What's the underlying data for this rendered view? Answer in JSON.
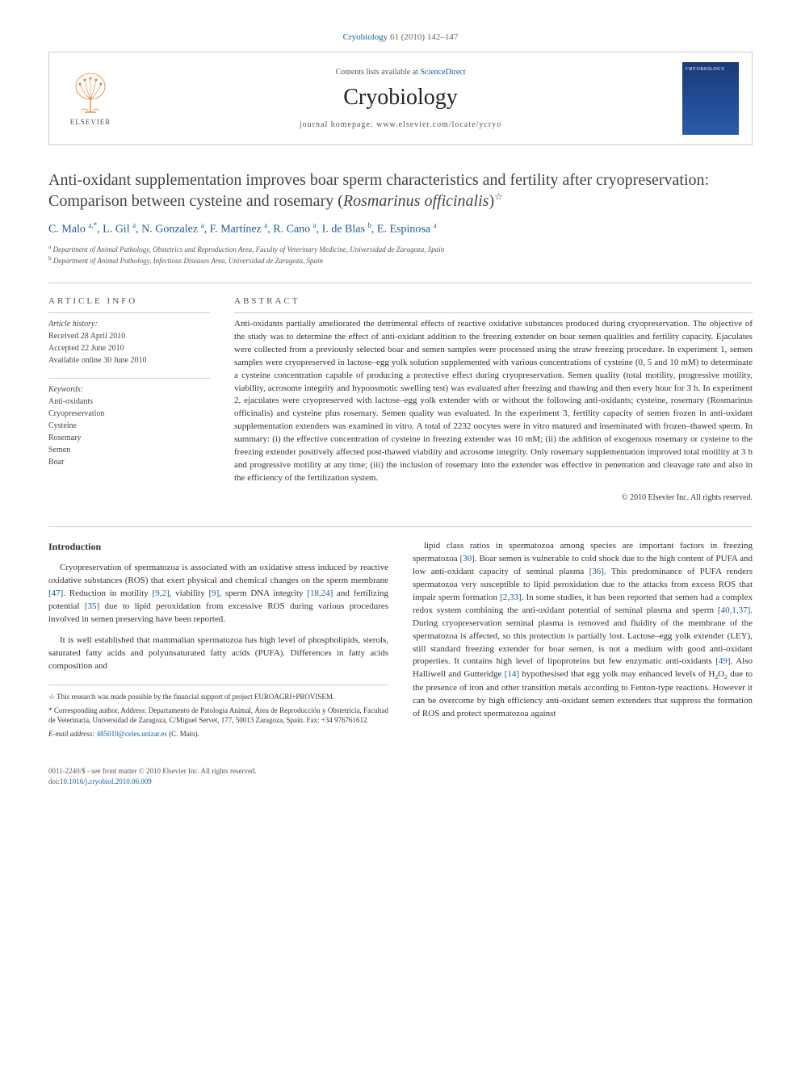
{
  "citation": {
    "journal_link": "Cryobiology",
    "volume_pages": "61 (2010) 142–147"
  },
  "header": {
    "contents_prefix": "Contents lists available at ",
    "contents_link": "ScienceDirect",
    "journal_name": "Cryobiology",
    "homepage_prefix": "journal homepage: ",
    "homepage_url": "www.elsevier.com/locate/ycryo",
    "elsevier_label": "ELSEVIER",
    "cover_label": "CRYOBIOLOGY"
  },
  "title": {
    "line1": "Anti-oxidant supplementation improves boar sperm characteristics and fertility after cryopreservation: Comparison between cysteine and rosemary (",
    "species": "Rosmarinus officinalis",
    "line2": ")",
    "star": "☆"
  },
  "authors_html": "C. Malo <sup>a,*</sup>, L. Gil <sup>a</sup>, N. Gonzalez <sup>a</sup>, F. Martínez <sup>a</sup>, R. Cano <sup>a</sup>, I. de Blas <sup>b</sup>, E. Espinosa <sup>a</sup>",
  "affiliations": {
    "a": "Department of Animal Pathology, Obstetrics and Reproduction Area, Faculty of Veterinary Medicine, Universidad de Zaragoza, Spain",
    "b": "Department of Animal Pathology, Infectious Diseases Area, Universidad de Zaragoza, Spain"
  },
  "article_info": {
    "head": "ARTICLE INFO",
    "history_label": "Article history:",
    "received": "Received 28 April 2010",
    "accepted": "Accepted 22 June 2010",
    "online": "Available online 30 June 2010",
    "keywords_label": "Keywords:",
    "keywords": [
      "Anti-oxidants",
      "Cryopreservation",
      "Cysteine",
      "Rosemary",
      "Semen",
      "Boar"
    ]
  },
  "abstract": {
    "head": "ABSTRACT",
    "text": "Anti-oxidants partially ameliorated the detrimental effects of reactive oxidative substances produced during cryopreservation. The objective of the study was to determine the effect of anti-oxidant addition to the freezing extender on boar semen qualities and fertility capacity. Ejaculates were collected from a previously selected boar and semen samples were processed using the straw freezing procedure. In experiment 1, semen samples were cryopreserved in lactose–egg yolk solution supplemented with various concentrations of cysteine (0, 5 and 10 mM) to determinate a cysteine concentration capable of producing a protective effect during cryopreservation. Semen quality (total motility, progressive motility, viability, acrosome integrity and hypoosmotic swelling test) was evaluated after freezing and thawing and then every hour for 3 h. In experiment 2, ejaculates were cryopreserved with lactose–egg yolk extender with or without the following anti-oxidants; cysteine, rosemary (Rosmarinus officinalis) and cysteine plus rosemary. Semen quality was evaluated. In the experiment 3, fertility capacity of semen frozen in anti-oxidant supplementation extenders was examined in vitro. A total of 2232 oocytes were in vitro matured and inseminated with frozen–thawed sperm. In summary: (i) the effective concentration of cysteine in freezing extender was 10 mM; (ii) the addition of exogenous rosemary or cysteine to the freezing extender positively affected post-thawed viability and acrosome integrity. Only rosemary supplementation improved total motility at 3 h and progressive motility at any time; (iii) the inclusion of rosemary into the extender was effective in penetration and cleavage rate and also in the efficiency of the fertilization system.",
    "copyright": "© 2010 Elsevier Inc. All rights reserved."
  },
  "body": {
    "head": "Introduction",
    "p1_a": "Cryopreservation of spermatozoa is associated with an oxidative stress induced by reactive oxidative substances (ROS) that exert physical and chemical changes on the sperm membrane ",
    "p1_r1": "[47]",
    "p1_b": ". Reduction in motility ",
    "p1_r2": "[9,2]",
    "p1_c": ", viability ",
    "p1_r3": "[9]",
    "p1_d": ", sperm DNA integrity ",
    "p1_r4": "[18,24]",
    "p1_e": " and fertilizing potential ",
    "p1_r5": "[35]",
    "p1_f": " due to lipid peroxidation from excessive ROS during various procedures involved in semen preserving have been reported.",
    "p2": "It is well established that mammalian spermatozoa has high level of phospholipids, sterols, saturated fatty acids and polyunsaturated fatty acids (PUFA). Differences in fatty acids composition and",
    "p3_a": "lipid class ratios in spermatozoa among species are important factors in freezing spermatozoa ",
    "p3_r1": "[30]",
    "p3_b": ". Boar semen is vulnerable to cold shock due to the high content of PUFA and low anti-oxidant capacity of seminal plasma ",
    "p3_r2": "[36]",
    "p3_c": ". This predominance of PUFA renders spermatozoa very susceptible to lipid peroxidation due to the attacks from excess ROS that impair sperm formation ",
    "p3_r3": "[2,33]",
    "p3_d": ". In some studies, it has been reported that semen had a complex redox system combining the anti-oxidant potential of seminal plasma and sperm ",
    "p3_r4": "[40,1,37]",
    "p3_e": ". During cryopreservation seminal plasma is removed and fluidity of the membrane of the spermatozoa is affected, so this protection is partially lost. Lactose–egg yolk extender (LEY), still standard freezing extender for boar semen, is not a medium with good anti-oxidant properties. It contains high level of lipoproteins but few enzymatic anti-oxidants ",
    "p3_r5": "[49]",
    "p3_f": ". Also Halliwell and Gutteridge ",
    "p3_r6": "[14]",
    "p3_g": " hypothesised that egg yolk may enhanced levels of H",
    "p3_h": "O",
    "p3_i": " due to the presence of iron and other transition metals according to Fenton-type reactions. However it can be overcome by high efficiency anti-oxidant semen extenders that suppress the formation of ROS and protect spermatozoa against"
  },
  "footnotes": {
    "star": "☆ This research was made possible by the financial support of project EUROAGRI+PROVISEM.",
    "corr": "* Corresponding author. Address: Departamento de Patología Animal, Área de Reproducción y Obstetricia, Facultad de Veterinaria, Universidad de Zaragoza, C/Miguel Servet, 177, 50013 Zaragoza, Spain. Fax: +34 976761612.",
    "email_label": "E-mail address:",
    "email": "485010@celes.unizar.es",
    "email_suffix": " (C. Malo)."
  },
  "footer": {
    "issn": "0011-2240/$ - see front matter © 2010 Elsevier Inc. All rights reserved.",
    "doi_label": "doi:",
    "doi": "10.1016/j.cryobiol.2010.06.009"
  }
}
